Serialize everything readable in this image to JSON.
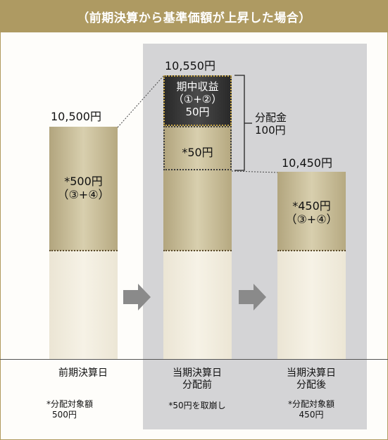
{
  "header": {
    "title": "（前期決算から基準価額が上昇した場合）"
  },
  "bars": {
    "prev": {
      "price": "10,500円",
      "label_line1": "*500円",
      "label_line2": "（③+④）"
    },
    "before": {
      "price": "10,550円",
      "income_line1": "期中収益",
      "income_line2": "（①+②）",
      "income_line3": "50円",
      "gold_label": "*50円"
    },
    "after": {
      "price": "10,450円",
      "label_line1": "*450円",
      "label_line2": "（③+④）"
    }
  },
  "distribution": {
    "line1": "分配金",
    "line2": "100円"
  },
  "columns": [
    {
      "title": "前期決算日",
      "sub": "",
      "note_line1": "*分配対象額",
      "note_line2": "500円"
    },
    {
      "title": "当期決算日",
      "sub": "分配前",
      "note_line1": "*50円を取崩し",
      "note_line2": ""
    },
    {
      "title": "当期決算日",
      "sub": "分配後",
      "note_line1": "*分配対象額",
      "note_line2": "450円"
    }
  ],
  "colors": {
    "header_bg": "#ae9a62",
    "panel_gray": "#d4d4d6",
    "gold": "#c8bc95",
    "cream": "#f3efe3",
    "dark": "#3a3a3a",
    "arrow": "#8a8a8a"
  },
  "icons": {
    "arrow": "right-arrow-icon"
  }
}
